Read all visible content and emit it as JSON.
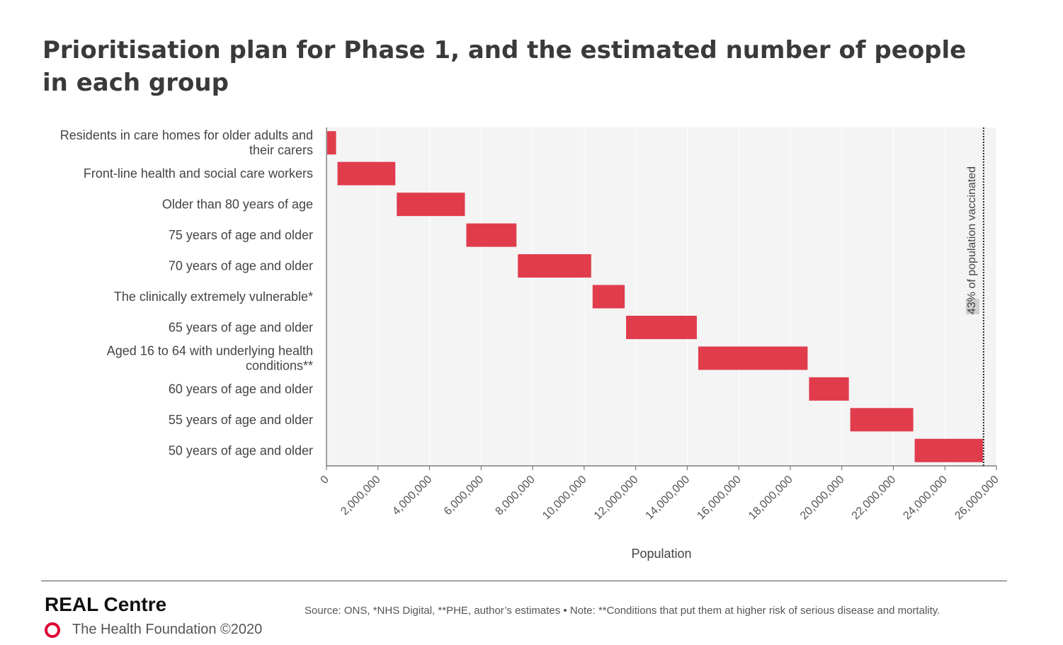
{
  "title": "Prioritisation plan for Phase 1, and the estimated number of people in each group",
  "chart_data": {
    "type": "bar",
    "orientation": "horizontal-waterfall",
    "categories": [
      [
        "Residents in care homes for older adults and",
        "their carers"
      ],
      [
        "Front-line health and social care workers"
      ],
      [
        "Older than 80 years of age"
      ],
      [
        "75 years of age and older"
      ],
      [
        "70 years of age and older"
      ],
      [
        "The clinically extremely vulnerable*"
      ],
      [
        "65 years of age and older"
      ],
      [
        "Aged 16 to 64 with underlying health",
        "conditions**"
      ],
      [
        "60 years of age and older"
      ],
      [
        "55 years of age and older"
      ],
      [
        "50 years of age and older"
      ]
    ],
    "starts": [
      0,
      400000,
      2700000,
      5400000,
      7400000,
      10300000,
      11600000,
      14400000,
      18700000,
      20300000,
      22800000
    ],
    "ends": [
      400000,
      2700000,
      5400000,
      7400000,
      10300000,
      11600000,
      14400000,
      18700000,
      20300000,
      22800000,
      25500000
    ],
    "xlabel": "Population",
    "xlim": [
      0,
      26000000
    ],
    "xticks": [
      "0",
      "2,000,000",
      "4,000,000",
      "6,000,000",
      "8,000,000",
      "10,000,000",
      "12,000,000",
      "14,000,000",
      "16,000,000",
      "18,000,000",
      "20,000,000",
      "22,000,000",
      "24,000,000",
      "26,000,000"
    ],
    "reference_line": {
      "value": 25500000,
      "label": "43% of population vaccinated"
    },
    "bar_color": "#e03c4c",
    "plot_background": "#f4f4f4",
    "grid": true
  },
  "footer": {
    "brand": "REAL Centre",
    "org": "The Health Foundation ©2020",
    "source": "Source: ONS, *NHS Digital, **PHE, author’s estimates • Note: **Conditions that put them at higher risk of serious disease and mortality."
  }
}
